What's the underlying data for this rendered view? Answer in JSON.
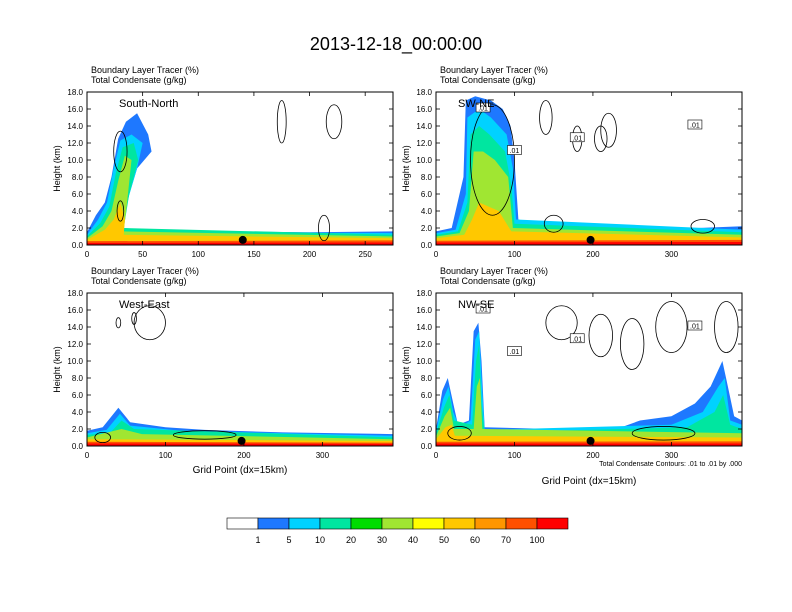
{
  "title": "2013-12-18_00:00:00",
  "colorbar": {
    "colors": [
      "#ffffff",
      "#1e78ff",
      "#00d2ff",
      "#00e6a0",
      "#00dc00",
      "#a0e632",
      "#ffff00",
      "#ffc800",
      "#ff9600",
      "#ff5000",
      "#ff0000"
    ],
    "labels": [
      "1",
      "5",
      "10",
      "20",
      "30",
      "40",
      "50",
      "60",
      "70",
      "100"
    ]
  },
  "chart_data": [
    {
      "type": "contour",
      "name": "South-North",
      "subtitle_line1": "Boundary Layer Tracer    (%)",
      "subtitle_line2": "Total Condensate   (g/kg)",
      "ylabel": "Height (km)",
      "xlabel": "",
      "xlim": [
        0,
        275
      ],
      "ylim": [
        0,
        18
      ],
      "xticks": [
        "0",
        "50",
        "100",
        "150",
        "200",
        "250"
      ],
      "xtick_values": [
        0,
        50,
        100,
        150,
        200,
        250
      ],
      "yticks": [
        "0.0",
        "2.0",
        "4.0",
        "6.0",
        "8.0",
        "10.0",
        "12.0",
        "14.0",
        "16.0",
        "18.0"
      ],
      "marker_x": 140,
      "contour_labels": []
    },
    {
      "type": "contour",
      "name": "SW-NE",
      "subtitle_line1": "Boundary Layer Tracer    (%)",
      "subtitle_line2": "Total Condensate   (g/kg)",
      "ylabel": "Height (km)",
      "xlabel": "",
      "xlim": [
        0,
        390
      ],
      "ylim": [
        0,
        18
      ],
      "xticks": [
        "0",
        "100",
        "200",
        "300"
      ],
      "xtick_values": [
        0,
        100,
        200,
        300
      ],
      "yticks": [
        "0.0",
        "2.0",
        "4.0",
        "6.0",
        "8.0",
        "10.0",
        "12.0",
        "14.0",
        "16.0",
        "18.0"
      ],
      "marker_x": 197,
      "contour_labels": [
        ".01",
        ".01",
        ".01",
        ".01"
      ]
    },
    {
      "type": "contour",
      "name": "West-East",
      "subtitle_line1": "Boundary Layer Tracer    (%)",
      "subtitle_line2": "Total Condensate   (g/kg)",
      "ylabel": "Height (km)",
      "xlabel": "Grid Point (dx=15km)",
      "xlim": [
        0,
        390
      ],
      "ylim": [
        0,
        18
      ],
      "xticks": [
        "0",
        "100",
        "200",
        "300"
      ],
      "xtick_values": [
        0,
        100,
        200,
        300
      ],
      "yticks": [
        "0.0",
        "2.0",
        "4.0",
        "6.0",
        "8.0",
        "10.0",
        "12.0",
        "14.0",
        "16.0",
        "18.0"
      ],
      "marker_x": 197,
      "contour_labels": []
    },
    {
      "type": "contour",
      "name": "NW-SE",
      "subtitle_line1": "Boundary Layer Tracer    (%)",
      "subtitle_line2": "Total Condensate   (g/kg)",
      "ylabel": "Height (km)",
      "xlabel": "Grid Point (dx=15km)",
      "xlim": [
        0,
        390
      ],
      "ylim": [
        0,
        18
      ],
      "xticks": [
        "0",
        "100",
        "200",
        "300"
      ],
      "xtick_values": [
        0,
        100,
        200,
        300
      ],
      "yticks": [
        "0.0",
        "2.0",
        "4.0",
        "6.0",
        "8.0",
        "10.0",
        "12.0",
        "14.0",
        "16.0",
        "18.0"
      ],
      "marker_x": 197,
      "contour_labels": [
        ".01",
        ".01",
        ".01",
        ".01"
      ],
      "footnote": "Total Condensate Contours: .01 to .01 by .000"
    }
  ]
}
